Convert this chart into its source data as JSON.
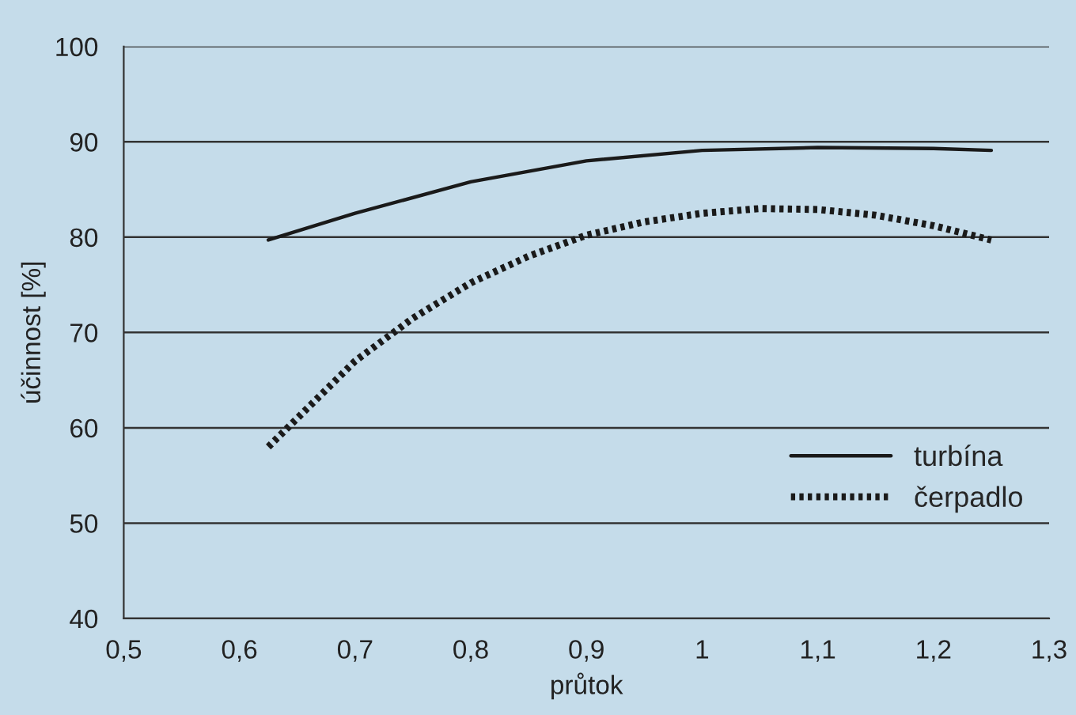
{
  "chart_data": {
    "type": "line",
    "xlabel": "průtok",
    "ylabel": "účinnost [%]",
    "xlim": [
      0.5,
      1.3
    ],
    "ylim": [
      40,
      100
    ],
    "xticks": [
      {
        "value": 0.5,
        "label": "0,5"
      },
      {
        "value": 0.6,
        "label": "0,6"
      },
      {
        "value": 0.7,
        "label": "0,7"
      },
      {
        "value": 0.8,
        "label": "0,8"
      },
      {
        "value": 0.9,
        "label": "0,9"
      },
      1,
      {
        "value": 1.1,
        "label": "1,1"
      },
      {
        "value": 1.2,
        "label": "1,2"
      },
      {
        "value": 1.3,
        "label": "1,3"
      }
    ],
    "yticks": [
      40,
      50,
      60,
      70,
      80,
      90,
      100
    ],
    "grid": "y",
    "legend": "bottom right",
    "marker": "none",
    "series": [
      {
        "name": "turbína",
        "color": "#1a1a1a",
        "line_style": "solid",
        "x": [
          0.625,
          0.7,
          0.8,
          0.9,
          1.0,
          1.1,
          1.2,
          1.25
        ],
        "values": [
          79.7,
          82.5,
          85.8,
          88,
          89.1,
          89.4,
          89.3,
          89.1
        ]
      },
      {
        "name": "čerpadlo",
        "color": "#1a1a1a",
        "line_style": "dotted",
        "x": [
          0.625,
          0.65,
          0.7,
          0.75,
          0.8,
          0.85,
          0.9,
          0.95,
          1.0,
          1.05,
          1.1,
          1.15,
          1.2,
          1.25
        ],
        "values": [
          58,
          61,
          67,
          71.5,
          75.2,
          78,
          80.2,
          81.6,
          82.5,
          83,
          82.9,
          82.3,
          81.2,
          79.7
        ]
      }
    ]
  }
}
